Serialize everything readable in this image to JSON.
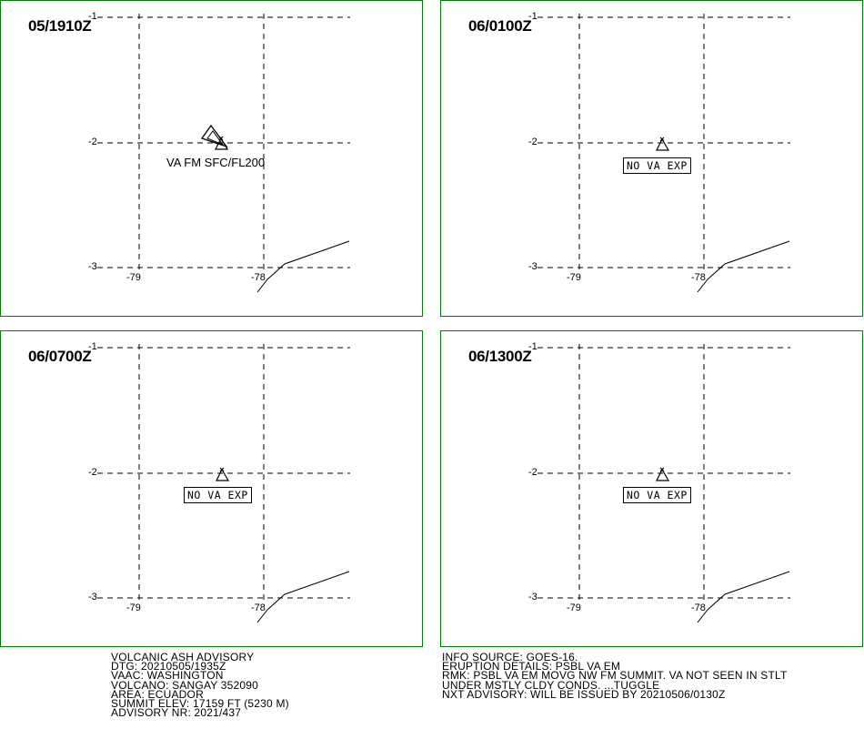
{
  "panels": [
    {
      "time": "05/1910Z",
      "lat_labels": [
        "-1",
        "-2",
        "-3"
      ],
      "lon_labels": [
        "-79",
        "-78"
      ],
      "ash_label": "VA FM SFC/FL200",
      "no_va_label": ""
    },
    {
      "time": "06/0100Z",
      "lat_labels": [
        "-1",
        "-2",
        "-3"
      ],
      "lon_labels": [
        "-79",
        "-78"
      ],
      "ash_label": "",
      "no_va_label": "NO VA EXP"
    },
    {
      "time": "06/0700Z",
      "lat_labels": [
        "-1",
        "-2",
        "-3"
      ],
      "lon_labels": [
        "-79",
        "-78"
      ],
      "ash_label": "",
      "no_va_label": "NO VA EXP"
    },
    {
      "time": "06/1300Z",
      "lat_labels": [
        "-1",
        "-2",
        "-3"
      ],
      "lon_labels": [
        "-79",
        "-78"
      ],
      "ash_label": "",
      "no_va_label": "NO VA EXP"
    }
  ],
  "advisory_left": [
    "VOLCANIC ASH ADVISORY",
    "DTG: 20210505/1935Z",
    "VAAC: WASHINGTON",
    "VOLCANO: SANGAY 352090",
    "AREA: ECUADOR",
    "SUMMIT ELEV: 17159 FT (5230 M)",
    "ADVISORY NR: 2021/437"
  ],
  "advisory_right": [
    "INFO SOURCE: GOES-16.",
    "ERUPTION DETAILS: PSBL VA EM",
    "RMK: PSBL VA EM MOVG NW FM SUMMIT. VA NOT SEEN IN STLT",
    "UNDER MSTLY CLDY CONDS. ...TUGGLE",
    "NXT ADVISORY: WILL BE ISSUED BY 20210506/0130Z"
  ],
  "colors": {
    "panel_border": "#008000",
    "grid": "#000000",
    "text": "#000000"
  },
  "icons": {
    "volcano": "volcano-triangle-icon"
  }
}
